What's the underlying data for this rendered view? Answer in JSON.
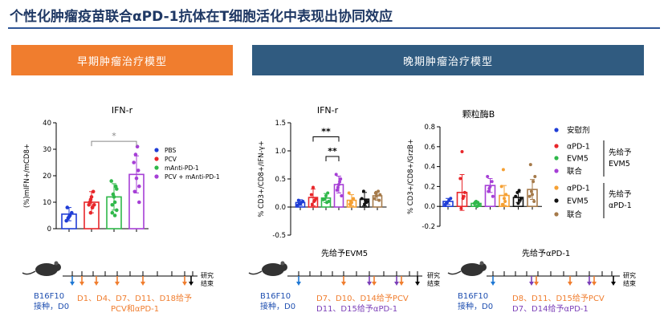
{
  "title": "个性化肿瘤疫苗联合αPD-1抗体在T细胞活化中表现出协同效应",
  "panels": {
    "early": "早期肿瘤治疗模型",
    "late": "晚期肿瘤治疗模型"
  },
  "colors": {
    "blue": "#1f3dd6",
    "red": "#e8262a",
    "green": "#2fb84a",
    "purple": "#a63fd6",
    "orange": "#f5a033",
    "black": "#111111",
    "brown": "#a57a4a"
  },
  "chart_data": [
    {
      "type": "bar",
      "title": "IFN-r",
      "ylabel": "(%)mIFN+/mCD8+",
      "ylim": [
        0,
        40
      ],
      "yticks": [
        0,
        10,
        20,
        30,
        40
      ],
      "significance": "*",
      "series": [
        {
          "name": "PBS",
          "color": "#1f3dd6",
          "mean": 5.5,
          "err": 2.5,
          "points": [
            3,
            4,
            5,
            6,
            8,
            4.5
          ]
        },
        {
          "name": "PCV",
          "color": "#e8262a",
          "mean": 10,
          "err": 4,
          "points": [
            6,
            8,
            9,
            10,
            12,
            14,
            9,
            11,
            8
          ]
        },
        {
          "name": "mAnti-PD-1",
          "color": "#2fb84a",
          "mean": 12,
          "err": 5,
          "points": [
            5,
            7,
            9,
            12,
            16,
            18,
            13,
            10,
            15,
            6
          ]
        },
        {
          "name": "PCV + mAnti-PD-1",
          "color": "#a63fd6",
          "mean": 20.5,
          "err": 7,
          "points": [
            10,
            14,
            19,
            22,
            25,
            28,
            31,
            16
          ]
        }
      ]
    },
    {
      "type": "bar",
      "title": "IFN-r",
      "ylabel": "% CD3+/CD8+/IFN-γ+",
      "ylim": [
        -0.5,
        1.5
      ],
      "yticks": [
        -0.5,
        0.0,
        0.5,
        1.0,
        1.5
      ],
      "significance": [
        "**",
        "**"
      ],
      "bars": [
        {
          "color": "#1f3dd6",
          "mean": 0.08,
          "err": 0.05,
          "points": [
            0.03,
            0.06,
            0.08,
            0.1,
            0.12,
            0.05
          ]
        },
        {
          "color": "#e8262a",
          "mean": 0.17,
          "err": 0.15,
          "points": [
            0.05,
            0.1,
            0.15,
            0.22,
            0.35,
            0.12
          ]
        },
        {
          "color": "#2fb84a",
          "mean": 0.16,
          "err": 0.08,
          "points": [
            0.08,
            0.1,
            0.14,
            0.2,
            0.25,
            0.13
          ]
        },
        {
          "color": "#a63fd6",
          "mean": 0.4,
          "err": 0.15,
          "points": [
            0.2,
            0.3,
            0.4,
            0.5,
            0.58,
            0.35,
            0.45
          ]
        },
        {
          "color": "#f5a033",
          "mean": 0.12,
          "err": 0.1,
          "points": [
            0.05,
            0.08,
            0.15,
            0.25,
            0.1
          ]
        },
        {
          "color": "#111111",
          "mean": 0.14,
          "err": 0.12,
          "points": [
            0.05,
            0.08,
            0.15,
            0.28,
            0.12,
            0.1
          ]
        },
        {
          "color": "#a57a4a",
          "mean": 0.2,
          "err": 0.08,
          "points": [
            0.12,
            0.15,
            0.2,
            0.28,
            0.22,
            0.25
          ]
        }
      ]
    },
    {
      "type": "bar",
      "title": "颗粒酶B",
      "ylabel": "% CD3+/CD8+/GrzB+",
      "ylim": [
        -0.2,
        0.8
      ],
      "yticks": [
        -0.2,
        0.0,
        0.2,
        0.4,
        0.6,
        0.8
      ],
      "bars": [
        {
          "color": "#1f3dd6",
          "mean": 0.05,
          "err": 0.03,
          "points": [
            0.02,
            0.04,
            0.06,
            0.08,
            0.03
          ]
        },
        {
          "color": "#e8262a",
          "mean": 0.14,
          "err": 0.18,
          "points": [
            -0.02,
            0.08,
            0.14,
            0.28,
            0.55,
            0.1
          ]
        },
        {
          "color": "#2fb84a",
          "mean": 0.03,
          "err": 0.02,
          "points": [
            0.0,
            0.02,
            0.03,
            0.05,
            0.04
          ]
        },
        {
          "color": "#a63fd6",
          "mean": 0.21,
          "err": 0.07,
          "points": [
            0.1,
            0.15,
            0.2,
            0.25,
            0.3,
            0.18
          ]
        },
        {
          "color": "#f5a033",
          "mean": 0.11,
          "err": 0.1,
          "points": [
            0.02,
            0.08,
            0.12,
            0.2,
            0.37,
            0.05
          ]
        },
        {
          "color": "#111111",
          "mean": 0.09,
          "err": 0.05,
          "points": [
            0.03,
            0.06,
            0.1,
            0.14,
            0.16,
            0.08
          ]
        },
        {
          "color": "#a57a4a",
          "mean": 0.17,
          "err": 0.1,
          "points": [
            0.05,
            0.1,
            0.15,
            0.25,
            0.3,
            0.42,
            0.12
          ]
        }
      ]
    }
  ],
  "legend_late": {
    "items": [
      "安慰剂",
      "αPD-1",
      "EVM5",
      "联合",
      "αPD-1",
      "EVM5",
      "联合"
    ],
    "bracket1": [
      "先给予",
      "EVM5"
    ],
    "bracket2": [
      "先给予",
      "αPD-1"
    ]
  },
  "timeline": {
    "end_label": [
      "研究",
      "结束"
    ],
    "early": {
      "start": "B16F10",
      "inoc": "接种，D0",
      "days1": "D1、D4、D7、D11、D18给予",
      "days2": "PCV和αPD-1"
    },
    "late1": {
      "header": "先给予EVM5",
      "start": "B16F10",
      "inoc": "接种，D0",
      "days1": "D7、D10、D14给予PCV",
      "days2": "D11、D15给予αPD-1"
    },
    "late2": {
      "header": "先给予αPD-1",
      "start": "B16F10",
      "inoc": "接种，D0",
      "days1": "D8、D11、D15给予PCV",
      "days2": "D7、D14给予αPD-1"
    }
  }
}
